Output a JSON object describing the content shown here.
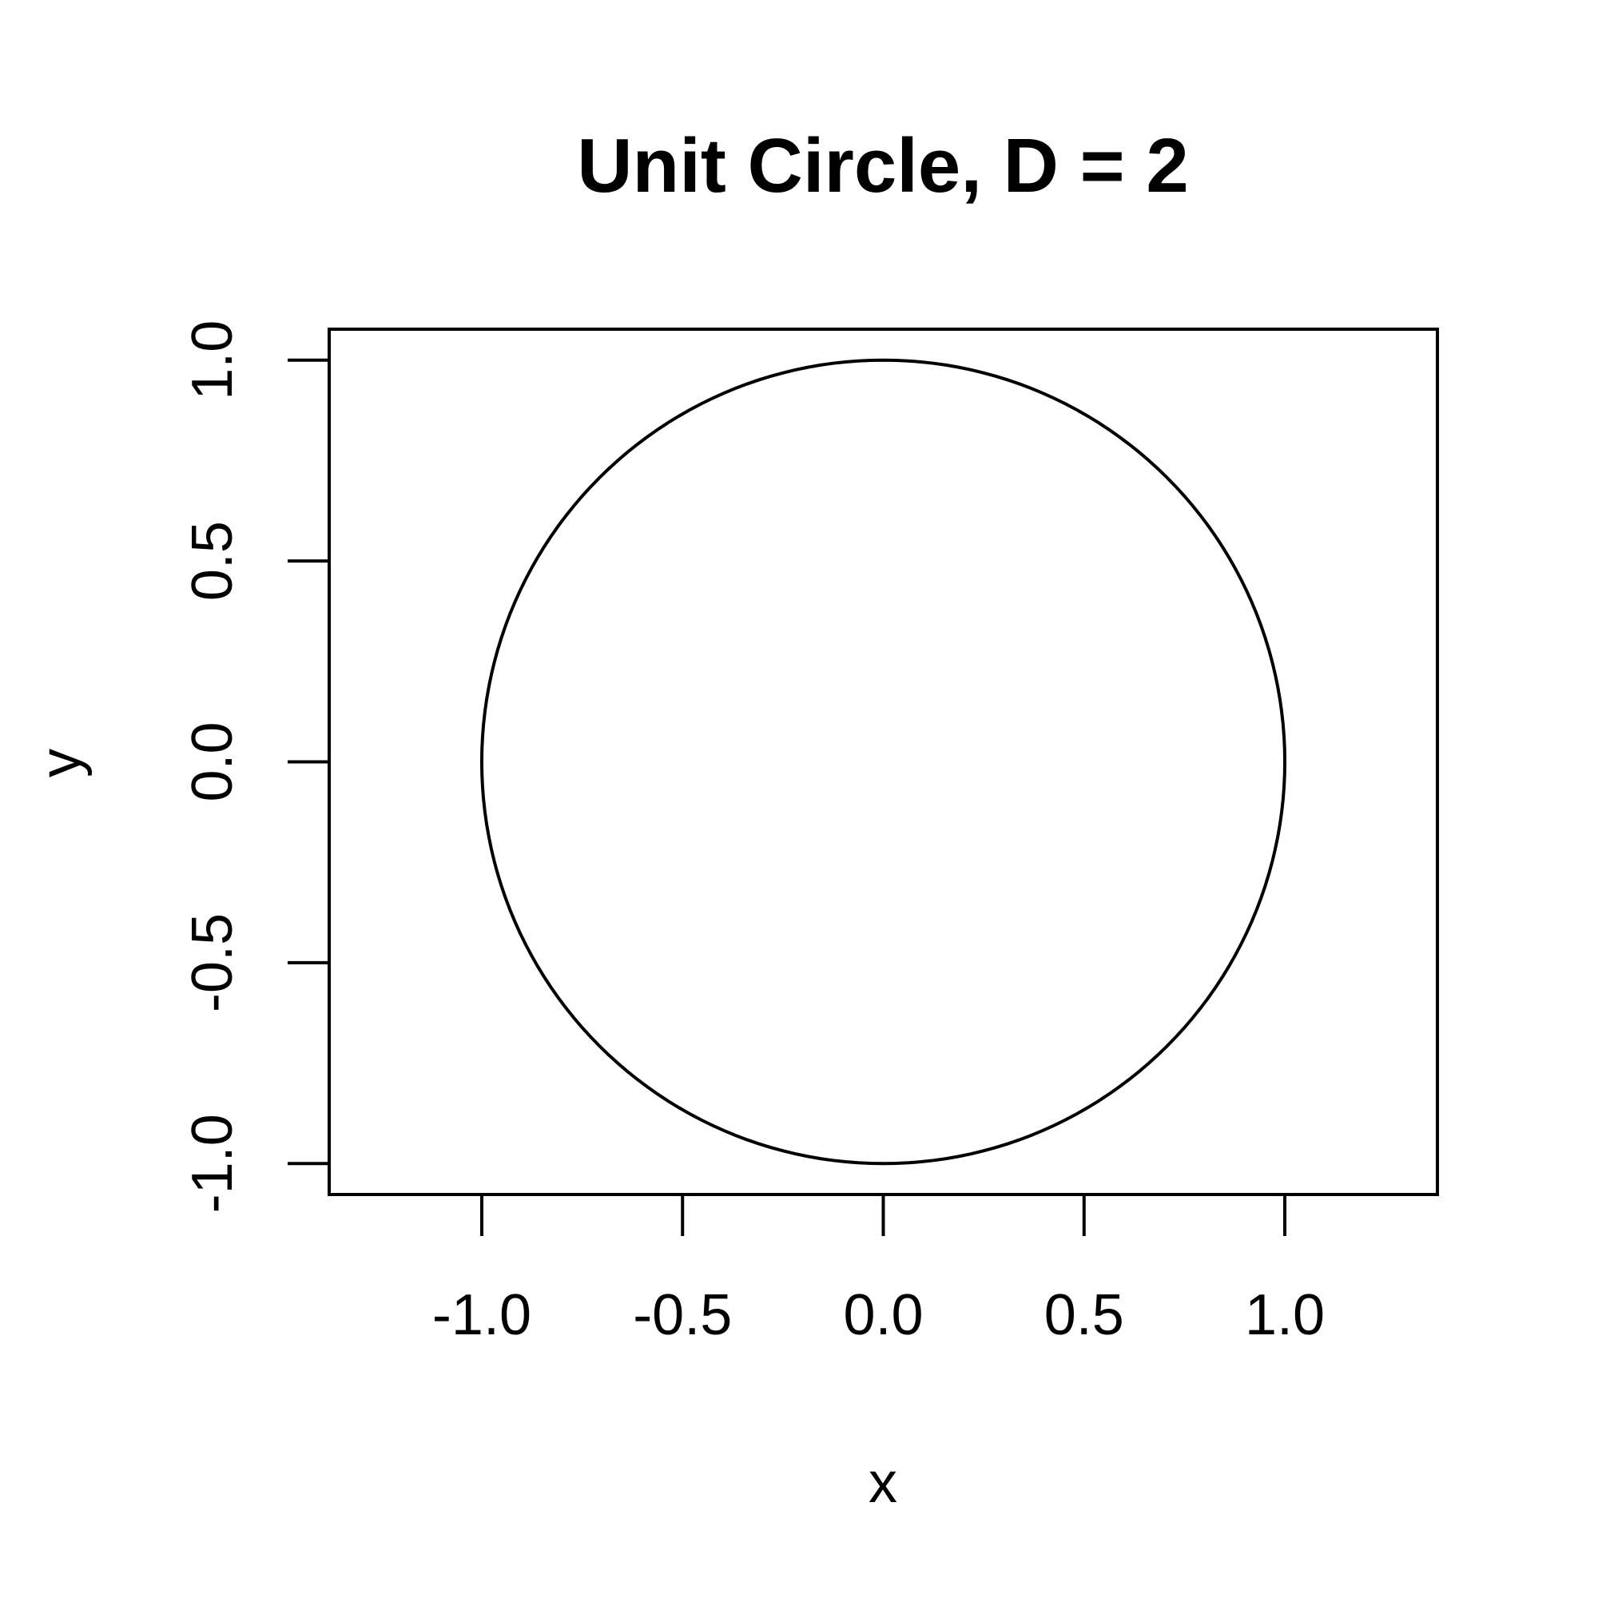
{
  "chart_data": {
    "type": "line",
    "title": "Unit Circle, D = 2",
    "xlabel": "x",
    "ylabel": "y",
    "xlim": [
      -1.38,
      1.38
    ],
    "ylim": [
      -1.077,
      1.077
    ],
    "x_ticks": [
      -1.0,
      -0.5,
      0.0,
      0.5,
      1.0
    ],
    "x_tick_labels": [
      "-1.0",
      "-0.5",
      "0.0",
      "0.5",
      "1.0"
    ],
    "y_ticks": [
      -1.0,
      -0.5,
      0.0,
      0.5,
      1.0
    ],
    "y_tick_labels": [
      "-1.0",
      "-0.5",
      "0.0",
      "0.5",
      "1.0"
    ],
    "grid": false,
    "series": [
      {
        "curve": "unit circle x = cos(t), y = sin(t), t from 0 to 2π",
        "center": [
          0,
          0
        ],
        "radius": 1
      }
    ],
    "colors": {
      "line": "#000000",
      "frame": "#000000",
      "background": "#ffffff"
    }
  }
}
